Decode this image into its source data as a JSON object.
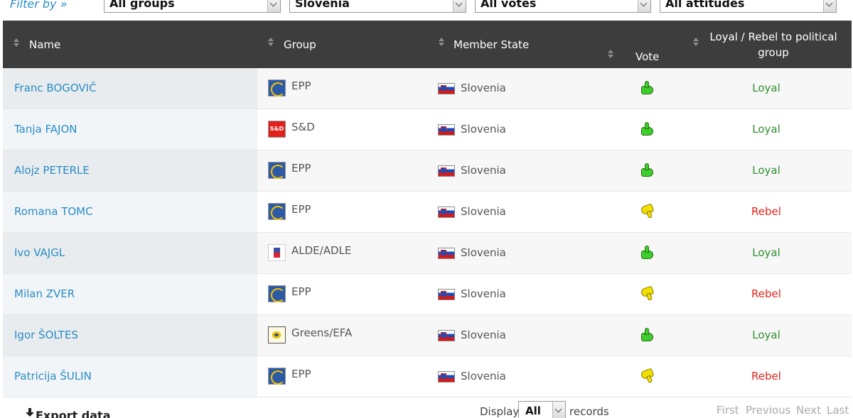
{
  "filters": {
    "label": "Filter by »",
    "group": "All groups",
    "state": "Slovenia",
    "vote": "All votes",
    "attitude": "All attitudes"
  },
  "table": {
    "headers": {
      "name": "Name",
      "group": "Group",
      "state": "Member State",
      "vote": "Vote",
      "loyal": "Loyal / Rebel to political group"
    },
    "rows": [
      {
        "name": "Franc BOGOVIČ",
        "group": "EPP",
        "group_logo": "epp-logo",
        "state": "Slovenia",
        "vote": "thumbs-up-icon",
        "attitude": "Loyal"
      },
      {
        "name": "Tanja FAJON",
        "group": "S&D",
        "group_logo": "sd-logo",
        "logo_text": "S&D",
        "state": "Slovenia",
        "vote": "thumbs-up-icon",
        "attitude": "Loyal"
      },
      {
        "name": "Alojz PETERLE",
        "group": "EPP",
        "group_logo": "epp-logo",
        "state": "Slovenia",
        "vote": "thumbs-up-icon",
        "attitude": "Loyal"
      },
      {
        "name": "Romana TOMC",
        "group": "EPP",
        "group_logo": "epp-logo",
        "state": "Slovenia",
        "vote": "thumbs-down-icon",
        "attitude": "Rebel"
      },
      {
        "name": "Ivo VAJGL",
        "group": "ALDE/ADLE",
        "group_logo": "alde-logo",
        "state": "Slovenia",
        "vote": "thumbs-up-icon",
        "attitude": "Loyal"
      },
      {
        "name": "Milan ZVER",
        "group": "EPP",
        "group_logo": "epp-logo",
        "state": "Slovenia",
        "vote": "thumbs-down-icon",
        "attitude": "Rebel"
      },
      {
        "name": "Igor ŠOLTES",
        "group": "Greens/EFA",
        "group_logo": "greens-logo",
        "state": "Slovenia",
        "vote": "thumbs-up-icon",
        "attitude": "Loyal"
      },
      {
        "name": "Patricija ŠULIN",
        "group": "EPP",
        "group_logo": "epp-logo",
        "state": "Slovenia",
        "vote": "thumbs-down-icon",
        "attitude": "Rebel"
      }
    ]
  },
  "footer": {
    "export": "Export data",
    "display": "Display",
    "length": "All",
    "records": "records",
    "pager": {
      "first": "First",
      "previous": "Previous",
      "next": "Next",
      "last": "Last"
    }
  },
  "colors": {
    "header_bg": "#3d3d3d",
    "link": "#2a8cc4",
    "loyal": "#2f8f2f",
    "rebel": "#e4241c"
  }
}
